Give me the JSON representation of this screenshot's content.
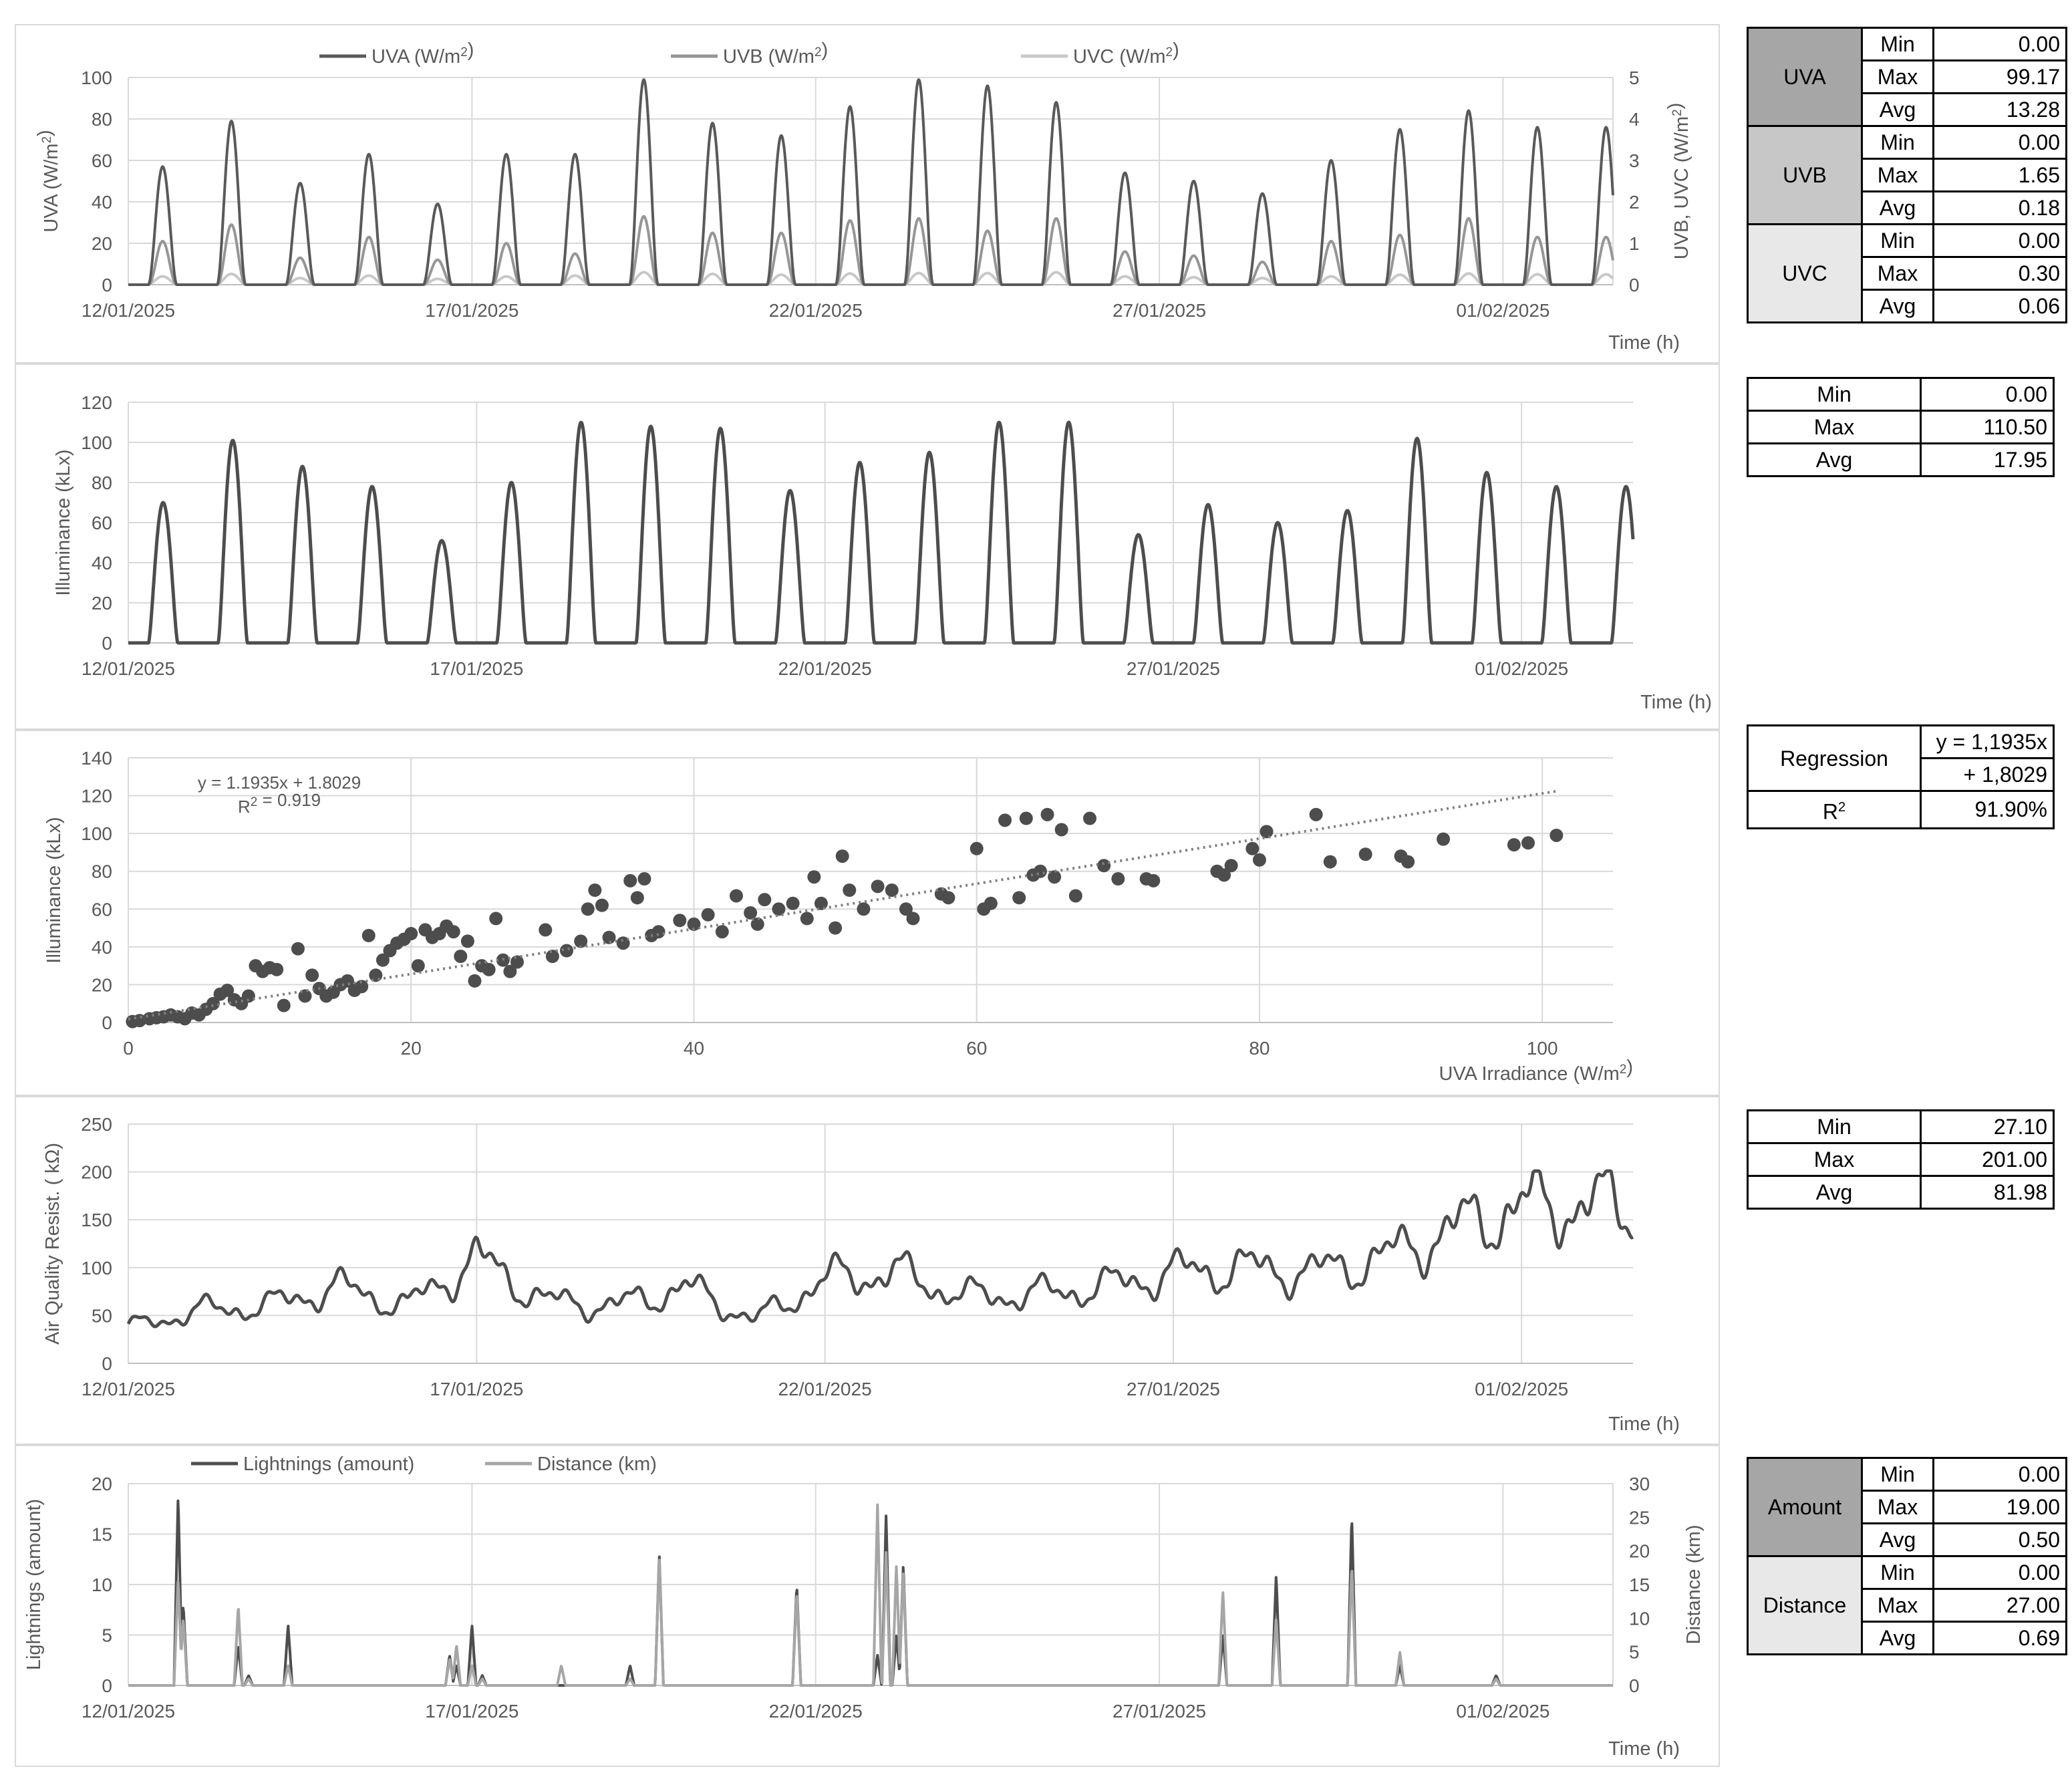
{
  "colors": {
    "uva": "#595959",
    "uvb": "#969696",
    "uvc": "#c8c8c8",
    "illum": "#4d4d4d",
    "scatter": "#4d4d4d",
    "aq": "#4d4d4d",
    "lightning": "#4d4d4d",
    "distance": "#a6a6a6",
    "grid": "#d9d9d9",
    "g1": "#a6a6a6",
    "g2": "#c7c7c7",
    "g3": "#e8e8e8"
  },
  "chart_data": [
    {
      "type": "line",
      "legend": [
        "UVA (W/m²)",
        "UVB (W/m²)",
        "UVC (W/m²)"
      ],
      "ylabel": "UVA (W/m²)",
      "y2label": "UVB, UVC (W/m²)",
      "xlabel": "Time (h)",
      "ylim": [
        0,
        100
      ],
      "y2lim": [
        0,
        5
      ],
      "yticks": [
        "0",
        "20",
        "40",
        "60",
        "80",
        "100"
      ],
      "y2ticks": [
        "0",
        "1",
        "2",
        "3",
        "4",
        "5"
      ],
      "xticks": [
        "12/01/2025",
        "17/01/2025",
        "22/01/2025",
        "27/01/2025",
        "01/02/2025"
      ],
      "days": [
        {
          "day": "12/01/2025",
          "uva": 57,
          "uvb": 1.05,
          "uvc": 0.2
        },
        {
          "day": "13/01/2025",
          "uva": 79,
          "uvb": 1.45,
          "uvc": 0.26
        },
        {
          "day": "14/01/2025",
          "uva": 49,
          "uvb": 0.65,
          "uvc": 0.16
        },
        {
          "day": "15/01/2025",
          "uva": 63,
          "uvb": 1.15,
          "uvc": 0.22
        },
        {
          "day": "16/01/2025",
          "uva": 39,
          "uvb": 0.6,
          "uvc": 0.14
        },
        {
          "day": "17/01/2025",
          "uva": 63,
          "uvb": 1.0,
          "uvc": 0.2
        },
        {
          "day": "18/01/2025",
          "uva": 63,
          "uvb": 0.75,
          "uvc": 0.22
        },
        {
          "day": "19/01/2025",
          "uva": 99,
          "uvb": 1.65,
          "uvc": 0.3
        },
        {
          "day": "20/01/2025",
          "uva": 78,
          "uvb": 1.25,
          "uvc": 0.26
        },
        {
          "day": "21/01/2025",
          "uva": 72,
          "uvb": 1.25,
          "uvc": 0.24
        },
        {
          "day": "22/01/2025",
          "uva": 86,
          "uvb": 1.55,
          "uvc": 0.27
        },
        {
          "day": "23/01/2025",
          "uva": 99,
          "uvb": 1.6,
          "uvc": 0.28
        },
        {
          "day": "24/01/2025",
          "uva": 96,
          "uvb": 1.3,
          "uvc": 0.28
        },
        {
          "day": "25/01/2025",
          "uva": 88,
          "uvb": 1.6,
          "uvc": 0.3
        },
        {
          "day": "26/01/2025",
          "uva": 54,
          "uvb": 0.8,
          "uvc": 0.2
        },
        {
          "day": "27/01/2025",
          "uva": 50,
          "uvb": 0.7,
          "uvc": 0.18
        },
        {
          "day": "28/01/2025",
          "uva": 44,
          "uvb": 0.55,
          "uvc": 0.16
        },
        {
          "day": "29/01/2025",
          "uva": 60,
          "uvb": 1.05,
          "uvc": 0.2
        },
        {
          "day": "30/01/2025",
          "uva": 75,
          "uvb": 1.2,
          "uvc": 0.24
        },
        {
          "day": "31/01/2025",
          "uva": 84,
          "uvb": 1.6,
          "uvc": 0.27
        },
        {
          "day": "01/02/2025",
          "uva": 76,
          "uvb": 1.15,
          "uvc": 0.25
        }
      ]
    },
    {
      "type": "line",
      "ylabel": "Illuminance (kLx)",
      "xlabel": "Time (h)",
      "ylim": [
        0,
        120
      ],
      "yticks": [
        "0",
        "20",
        "40",
        "60",
        "80",
        "100",
        "120"
      ],
      "xticks": [
        "12/01/2025",
        "17/01/2025",
        "22/01/2025",
        "27/01/2025",
        "01/02/2025"
      ],
      "days": [
        {
          "day": "12/01/2025",
          "illuminance": 70
        },
        {
          "day": "13/01/2025",
          "illuminance": 101
        },
        {
          "day": "14/01/2025",
          "illuminance": 88
        },
        {
          "day": "15/01/2025",
          "illuminance": 78
        },
        {
          "day": "16/01/2025",
          "illuminance": 51
        },
        {
          "day": "17/01/2025",
          "illuminance": 80
        },
        {
          "day": "18/01/2025",
          "illuminance": 110
        },
        {
          "day": "19/01/2025",
          "illuminance": 108
        },
        {
          "day": "20/01/2025",
          "illuminance": 107
        },
        {
          "day": "21/01/2025",
          "illuminance": 76
        },
        {
          "day": "22/01/2025",
          "illuminance": 90
        },
        {
          "day": "23/01/2025",
          "illuminance": 95
        },
        {
          "day": "24/01/2025",
          "illuminance": 110
        },
        {
          "day": "25/01/2025",
          "illuminance": 110
        },
        {
          "day": "26/01/2025",
          "illuminance": 54
        },
        {
          "day": "27/01/2025",
          "illuminance": 69
        },
        {
          "day": "28/01/2025",
          "illuminance": 60
        },
        {
          "day": "29/01/2025",
          "illuminance": 66
        },
        {
          "day": "30/01/2025",
          "illuminance": 102
        },
        {
          "day": "31/01/2025",
          "illuminance": 85
        },
        {
          "day": "01/02/2025",
          "illuminance": 78
        }
      ]
    },
    {
      "type": "scatter",
      "ylabel": "Illuminance (kLx)",
      "xlabel": "UVA Irradiance (W/m²)",
      "xlim": [
        0,
        105
      ],
      "ylim": [
        0,
        140
      ],
      "xticks": [
        "0",
        "20",
        "40",
        "60",
        "80",
        "100"
      ],
      "yticks": [
        "0",
        "20",
        "40",
        "60",
        "80",
        "100",
        "120",
        "140"
      ],
      "trendline": {
        "equation": "y = 1.1935x + 1.8029",
        "r2": "R² = 0.919",
        "slope": 1.1935,
        "intercept": 1.8029
      },
      "points": [
        [
          0.3,
          0.5
        ],
        [
          0.8,
          1
        ],
        [
          1.5,
          2
        ],
        [
          2,
          2.5
        ],
        [
          2.5,
          3
        ],
        [
          3,
          4
        ],
        [
          3.5,
          3
        ],
        [
          4,
          2
        ],
        [
          4.5,
          5
        ],
        [
          5,
          4
        ],
        [
          5.5,
          7
        ],
        [
          6,
          10
        ],
        [
          6.5,
          15
        ],
        [
          7,
          17
        ],
        [
          7.5,
          12
        ],
        [
          8,
          10
        ],
        [
          8.5,
          14
        ],
        [
          9,
          30
        ],
        [
          9.5,
          27
        ],
        [
          10,
          29
        ],
        [
          10.5,
          28
        ],
        [
          11,
          9
        ],
        [
          12,
          39
        ],
        [
          12.5,
          14
        ],
        [
          13,
          25
        ],
        [
          13.5,
          18
        ],
        [
          14,
          14
        ],
        [
          14.5,
          16
        ],
        [
          15,
          20
        ],
        [
          15.5,
          22
        ],
        [
          16,
          17
        ],
        [
          16.5,
          19
        ],
        [
          17,
          46
        ],
        [
          17.5,
          25
        ],
        [
          18,
          33
        ],
        [
          18.5,
          38
        ],
        [
          19,
          42
        ],
        [
          19.5,
          44
        ],
        [
          20,
          47
        ],
        [
          20.5,
          30
        ],
        [
          21,
          49
        ],
        [
          21.5,
          45
        ],
        [
          22,
          47
        ],
        [
          22.5,
          51
        ],
        [
          23,
          48
        ],
        [
          23.5,
          35
        ],
        [
          24,
          43
        ],
        [
          24.5,
          22
        ],
        [
          25,
          30
        ],
        [
          25.5,
          28
        ],
        [
          26,
          55
        ],
        [
          26.5,
          33
        ],
        [
          27,
          27
        ],
        [
          27.5,
          32
        ],
        [
          29.5,
          49
        ],
        [
          30,
          35
        ],
        [
          31,
          38
        ],
        [
          32,
          43
        ],
        [
          32.5,
          60
        ],
        [
          33,
          70
        ],
        [
          33.5,
          62
        ],
        [
          34,
          45
        ],
        [
          35,
          42
        ],
        [
          35.5,
          75
        ],
        [
          36,
          66
        ],
        [
          36.5,
          76
        ],
        [
          37,
          46
        ],
        [
          37.5,
          48
        ],
        [
          39,
          54
        ],
        [
          40,
          52
        ],
        [
          41,
          57
        ],
        [
          42,
          48
        ],
        [
          43,
          67
        ],
        [
          44,
          58
        ],
        [
          44.5,
          52
        ],
        [
          45,
          65
        ],
        [
          46,
          60
        ],
        [
          47,
          63
        ],
        [
          48,
          55
        ],
        [
          48.5,
          77
        ],
        [
          49,
          63
        ],
        [
          50,
          50
        ],
        [
          50.5,
          88
        ],
        [
          51,
          70
        ],
        [
          52,
          60
        ],
        [
          53,
          72
        ],
        [
          54,
          70
        ],
        [
          55,
          60
        ],
        [
          55.5,
          55
        ],
        [
          57.5,
          68
        ],
        [
          58,
          66
        ],
        [
          60,
          92
        ],
        [
          60.5,
          60
        ],
        [
          61,
          63
        ],
        [
          62,
          107
        ],
        [
          63,
          66
        ],
        [
          63.5,
          108
        ],
        [
          64,
          78
        ],
        [
          64.5,
          80
        ],
        [
          65,
          110
        ],
        [
          65.5,
          77
        ],
        [
          66,
          102
        ],
        [
          67,
          67
        ],
        [
          68,
          108
        ],
        [
          69,
          83
        ],
        [
          70,
          76
        ],
        [
          72,
          76
        ],
        [
          72.5,
          75
        ],
        [
          77,
          80
        ],
        [
          77.5,
          78
        ],
        [
          78,
          83
        ],
        [
          79.5,
          92
        ],
        [
          80,
          86
        ],
        [
          80.5,
          101
        ],
        [
          84,
          110
        ],
        [
          85,
          85
        ],
        [
          87.5,
          89
        ],
        [
          90,
          88
        ],
        [
          90.5,
          85
        ],
        [
          93,
          97
        ],
        [
          98,
          94
        ],
        [
          99,
          95
        ],
        [
          101,
          99
        ]
      ]
    },
    {
      "type": "line",
      "ylabel": "Air Quality Resist. ( kΩ)",
      "xlabel": "Time (h)",
      "ylim": [
        0,
        250
      ],
      "yticks": [
        "0",
        "50",
        "100",
        "150",
        "200",
        "250"
      ],
      "xticks": [
        "12/01/2025",
        "17/01/2025",
        "22/01/2025",
        "27/01/2025",
        "01/02/2025"
      ],
      "days": [
        {
          "day": "12/01/2025",
          "resistance": 37
        },
        {
          "day": "13/01/2025",
          "resistance": 55
        },
        {
          "day": "14/01/2025",
          "resistance": 60
        },
        {
          "day": "15/01/2025",
          "resistance": 80
        },
        {
          "day": "16/01/2025",
          "resistance": 60
        },
        {
          "day": "17/01/2025",
          "resistance": 110
        },
        {
          "day": "18/01/2025",
          "resistance": 65
        },
        {
          "day": "19/01/2025",
          "resistance": 60
        },
        {
          "day": "20/01/2025",
          "resistance": 80
        },
        {
          "day": "21/01/2025",
          "resistance": 45
        },
        {
          "day": "22/01/2025",
          "resistance": 88
        },
        {
          "day": "23/01/2025",
          "resistance": 95
        },
        {
          "day": "24/01/2025",
          "resistance": 70
        },
        {
          "day": "25/01/2025",
          "resistance": 72
        },
        {
          "day": "26/01/2025",
          "resistance": 80
        },
        {
          "day": "27/01/2025",
          "resistance": 95
        },
        {
          "day": "28/01/2025",
          "resistance": 100
        },
        {
          "day": "29/01/2025",
          "resistance": 95
        },
        {
          "day": "30/01/2025",
          "resistance": 110
        },
        {
          "day": "31/01/2025",
          "resistance": 140
        },
        {
          "day": "01/02/2025",
          "resistance": 165
        }
      ]
    },
    {
      "type": "line",
      "legend": [
        "Lightnings (amount)",
        "Distance (km)"
      ],
      "ylabel": "Lightnings (amount)",
      "y2label": "Distance (km)",
      "xlabel": "Time (h)",
      "ylim": [
        0,
        20
      ],
      "y2lim": [
        0,
        30
      ],
      "yticks": [
        "0",
        "5",
        "10",
        "15",
        "20"
      ],
      "y2ticks": [
        "0",
        "5",
        "10",
        "15",
        "20",
        "25",
        "30"
      ],
      "xticks": [
        "12/01/2025",
        "17/01/2025",
        "22/01/2025",
        "27/01/2025",
        "01/02/2025"
      ],
      "events": [
        {
          "day": 1.45,
          "lightnings": 19,
          "distance": 16
        },
        {
          "day": 1.6,
          "lightnings": 8,
          "distance": 10
        },
        {
          "day": 3.2,
          "lightnings": 4,
          "distance": 12
        },
        {
          "day": 3.5,
          "lightnings": 1,
          "distance": 1
        },
        {
          "day": 4.65,
          "lightnings": 6,
          "distance": 3
        },
        {
          "day": 9.35,
          "lightnings": 3,
          "distance": 4
        },
        {
          "day": 9.55,
          "lightnings": 2,
          "distance": 6
        },
        {
          "day": 10.0,
          "lightnings": 6,
          "distance": 3
        },
        {
          "day": 10.3,
          "lightnings": 1,
          "distance": 1
        },
        {
          "day": 12.6,
          "lightnings": 0,
          "distance": 3
        },
        {
          "day": 14.6,
          "lightnings": 2,
          "distance": 1
        },
        {
          "day": 15.45,
          "lightnings": 13,
          "distance": 19
        },
        {
          "day": 19.45,
          "lightnings": 10,
          "distance": 14
        },
        {
          "day": 21.8,
          "lightnings": 3,
          "distance": 27
        },
        {
          "day": 22.05,
          "lightnings": 17,
          "distance": 20
        },
        {
          "day": 22.35,
          "lightnings": 5,
          "distance": 18
        },
        {
          "day": 22.55,
          "lightnings": 12,
          "distance": 17
        },
        {
          "day": 31.85,
          "lightnings": 5,
          "distance": 14
        },
        {
          "day": 33.4,
          "lightnings": 11,
          "distance": 10
        },
        {
          "day": 35.6,
          "lightnings": 17,
          "distance": 18
        },
        {
          "day": 37.0,
          "lightnings": 2,
          "distance": 5
        },
        {
          "day": 39.8,
          "lightnings": 1,
          "distance": 1
        }
      ]
    }
  ],
  "tables": {
    "uv": {
      "groups": [
        {
          "name": "UVA",
          "rows": [
            [
              "Min",
              "0.00"
            ],
            [
              "Max",
              "99.17"
            ],
            [
              "Avg",
              "13.28"
            ]
          ]
        },
        {
          "name": "UVB",
          "rows": [
            [
              "Min",
              "0.00"
            ],
            [
              "Max",
              "1.65"
            ],
            [
              "Avg",
              "0.18"
            ]
          ]
        },
        {
          "name": "UVC",
          "rows": [
            [
              "Min",
              "0.00"
            ],
            [
              "Max",
              "0.30"
            ],
            [
              "Avg",
              "0.06"
            ]
          ]
        }
      ]
    },
    "illum": {
      "rows": [
        [
          "Min",
          "0.00"
        ],
        [
          "Max",
          "110.50"
        ],
        [
          "Avg",
          "17.95"
        ]
      ]
    },
    "regression": {
      "label": "Regression",
      "line1": "y = 1,1935x",
      "line2": "+ 1,8029",
      "r2_label": "R²",
      "r2_value": "91.90%"
    },
    "air": {
      "rows": [
        [
          "Min",
          "27.10"
        ],
        [
          "Max",
          "201.00"
        ],
        [
          "Avg",
          "81.98"
        ]
      ]
    },
    "lightning": {
      "groups": [
        {
          "name": "Amount",
          "rows": [
            [
              "Min",
              "0.00"
            ],
            [
              "Max",
              "19.00"
            ],
            [
              "Avg",
              "0.50"
            ]
          ]
        },
        {
          "name": "Distance",
          "rows": [
            [
              "Min",
              "0.00"
            ],
            [
              "Max",
              "27.00"
            ],
            [
              "Avg",
              "0.69"
            ]
          ]
        }
      ]
    }
  }
}
